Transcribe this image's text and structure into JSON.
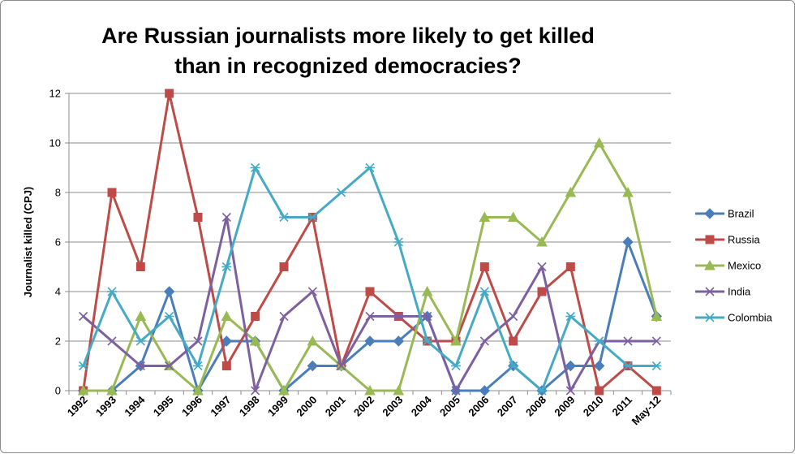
{
  "chart_data": {
    "type": "line",
    "title_lines": [
      "Are Russian journalists more likely to get killed",
      "than in recognized democracies?"
    ],
    "ylabel": "Journalist killed (CPJ)",
    "xlabel": "",
    "categories": [
      "1992",
      "1993",
      "1994",
      "1995",
      "1996",
      "1997",
      "1998",
      "1999",
      "2000",
      "2001",
      "2002",
      "2003",
      "2004",
      "2005",
      "2006",
      "2007",
      "2008",
      "2009",
      "2010",
      "2011",
      "May-12"
    ],
    "ylim": [
      0,
      12
    ],
    "yticks": [
      "0",
      "2",
      "4",
      "6",
      "8",
      "10",
      "12"
    ],
    "grid": true,
    "legend_position": "right",
    "series": [
      {
        "name": "Brazil",
        "color": "#4a7ebb",
        "marker": "diamond",
        "values": [
          0,
          0,
          1,
          4,
          0,
          2,
          2,
          0,
          1,
          1,
          2,
          2,
          3,
          0,
          0,
          1,
          0,
          1,
          1,
          6,
          3
        ]
      },
      {
        "name": "Russia",
        "color": "#be4b48",
        "marker": "square",
        "values": [
          0,
          8,
          5,
          12,
          7,
          1,
          3,
          5,
          7,
          1,
          4,
          3,
          2,
          2,
          5,
          2,
          4,
          5,
          0,
          1,
          0
        ]
      },
      {
        "name": "Mexico",
        "color": "#98b954",
        "marker": "triangle",
        "values": [
          0,
          0,
          3,
          1,
          0,
          3,
          2,
          0,
          2,
          1,
          0,
          0,
          4,
          2,
          7,
          7,
          6,
          8,
          10,
          8,
          3
        ]
      },
      {
        "name": "India",
        "color": "#7d60a0",
        "marker": "x",
        "values": [
          3,
          2,
          1,
          1,
          2,
          7,
          0,
          3,
          4,
          1,
          3,
          3,
          3,
          0,
          2,
          3,
          5,
          0,
          2,
          2,
          2
        ]
      },
      {
        "name": "Colombia",
        "color": "#46aac5",
        "marker": "star",
        "values": [
          1,
          4,
          2,
          3,
          1,
          5,
          9,
          7,
          7,
          8,
          9,
          6,
          2,
          1,
          4,
          1,
          0,
          3,
          2,
          1,
          1
        ]
      }
    ]
  }
}
